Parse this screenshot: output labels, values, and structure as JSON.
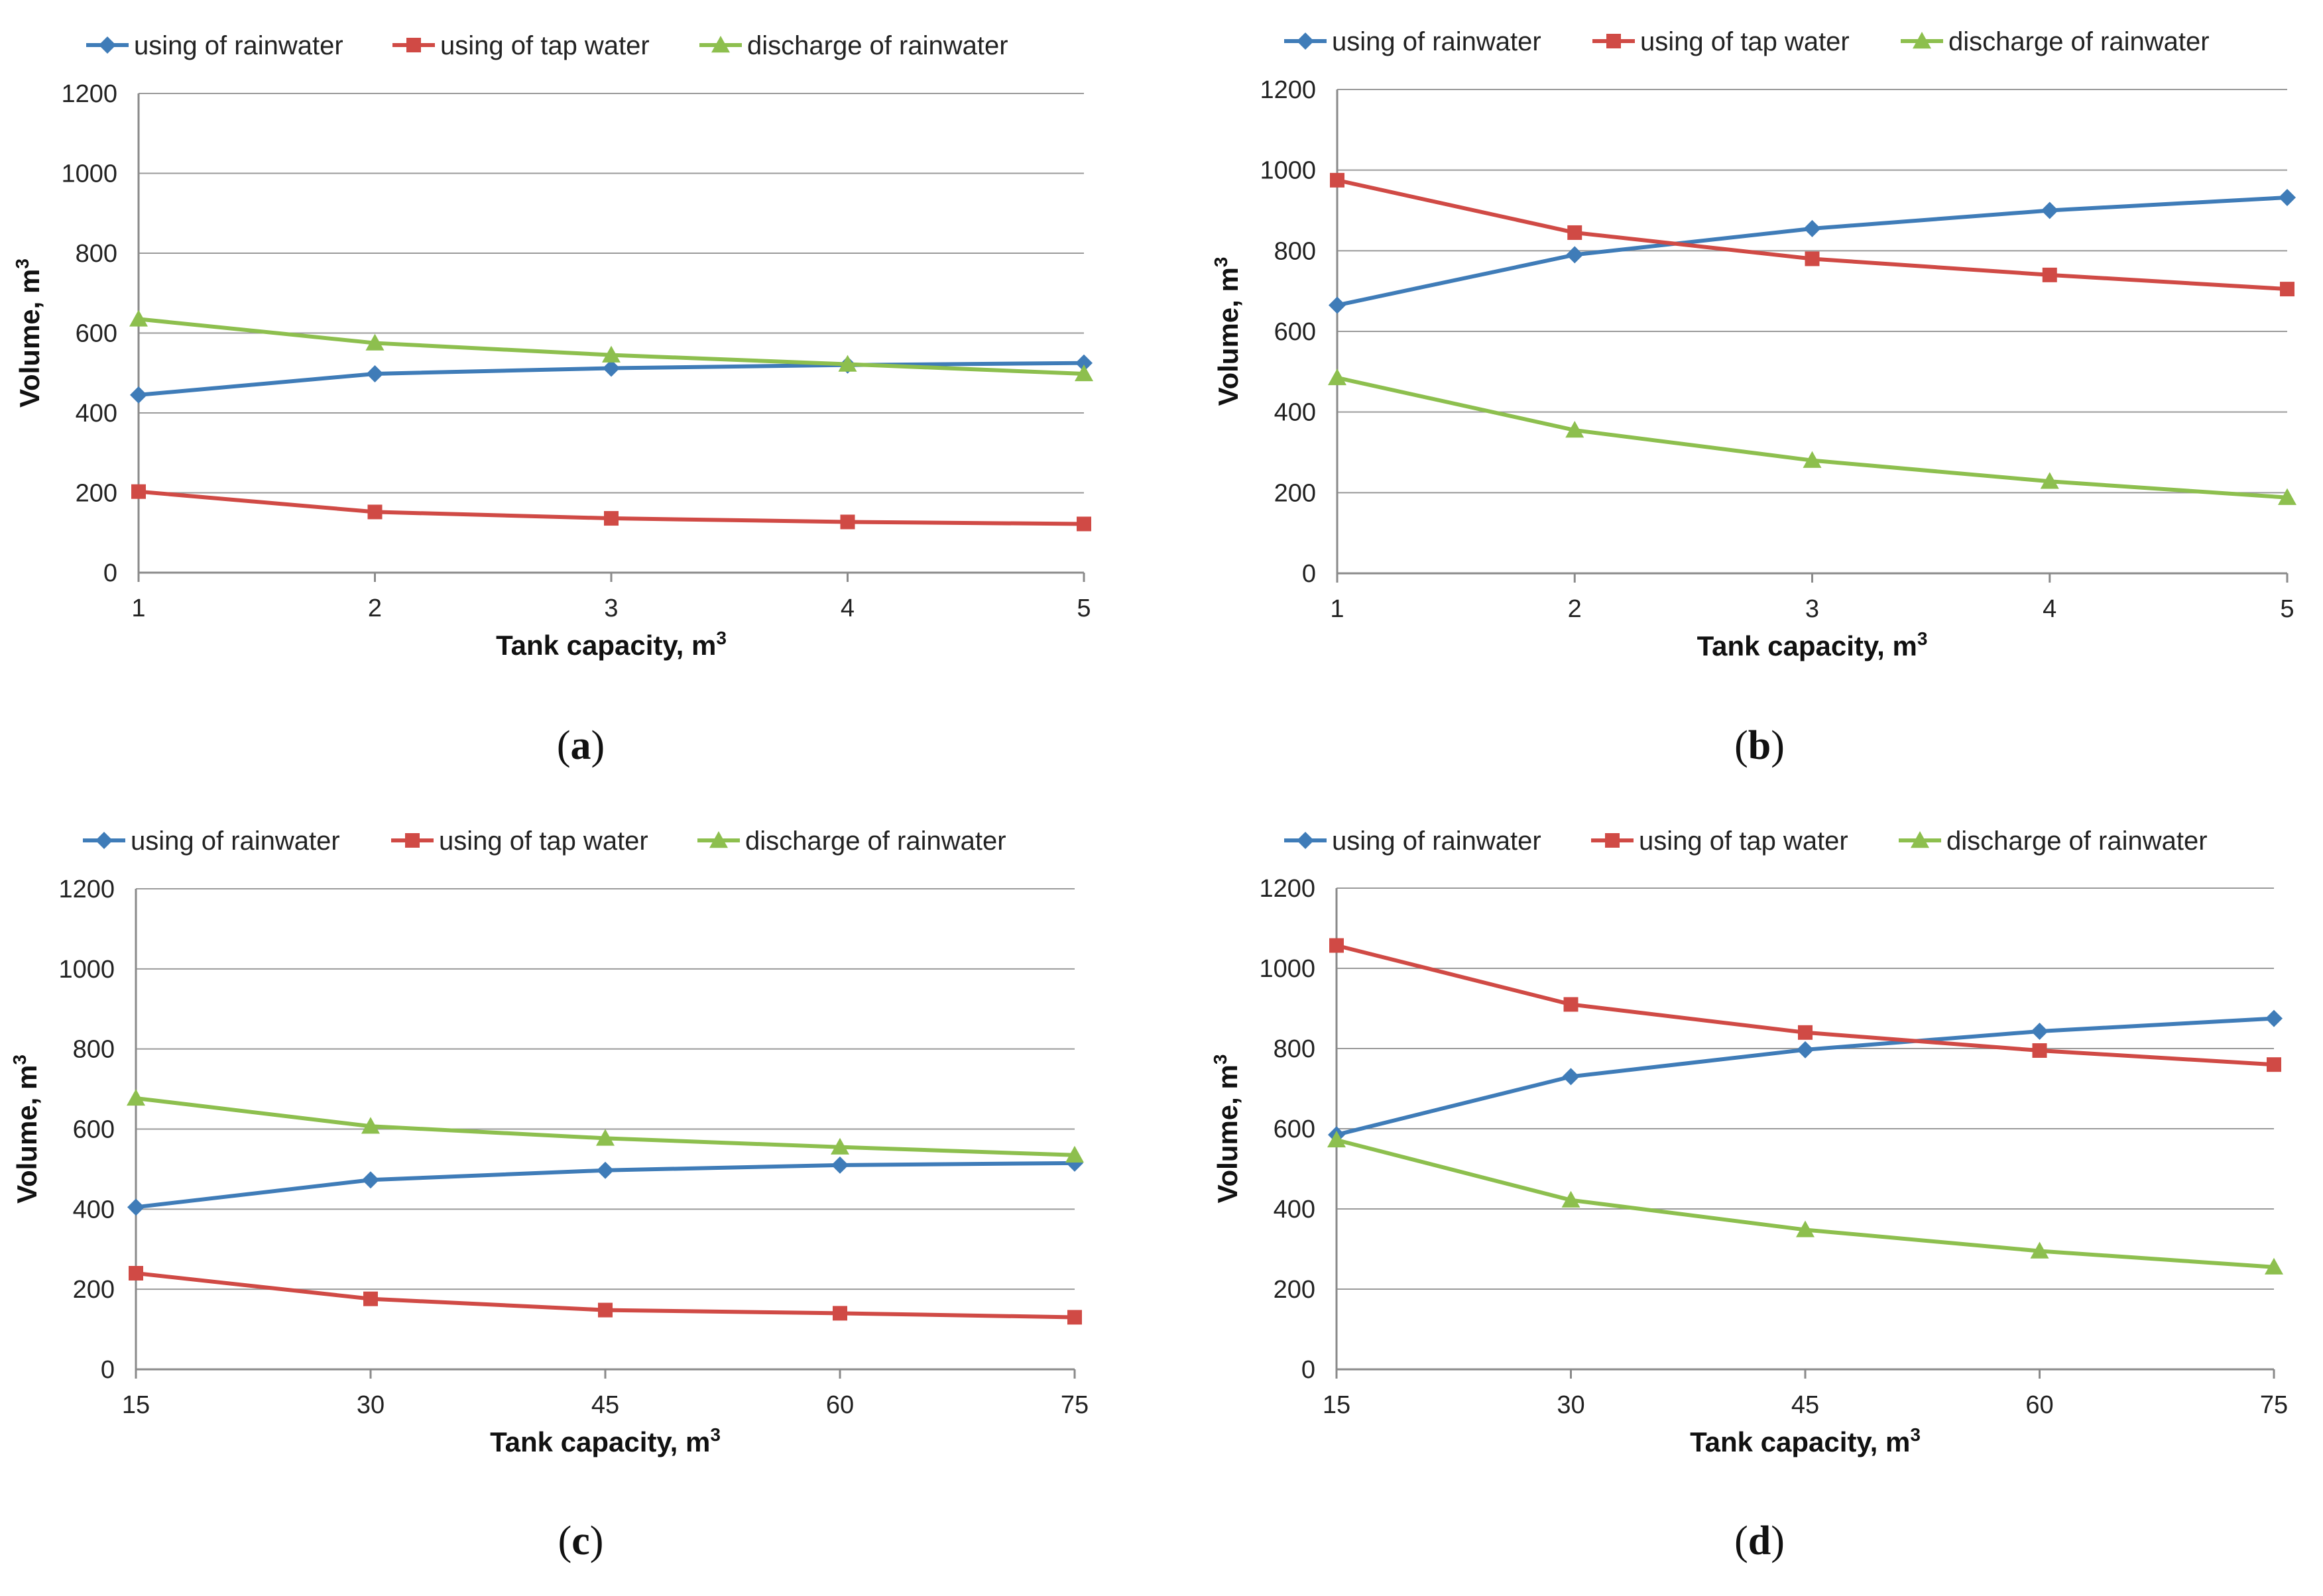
{
  "figure": {
    "panels": [
      {
        "caption": "a",
        "xlabel": "Tank capacity, m",
        "ylabel": "Volume, m"
      },
      {
        "caption": "b",
        "xlabel": "Tank capacity, m",
        "ylabel": "Volume, m"
      },
      {
        "caption": "c",
        "xlabel": "Tank capacity, m",
        "ylabel": "Volume, m"
      },
      {
        "caption": "d",
        "xlabel": "Tank capacity, m",
        "ylabel": "Volume, m"
      }
    ]
  },
  "chart_data": [
    {
      "type": "line",
      "panel": "a",
      "title": "",
      "xlabel": "Tank capacity, m3",
      "ylabel": "Volume, m3",
      "categories": [
        "1",
        "2",
        "3",
        "4",
        "5"
      ],
      "ylim": [
        0,
        1200
      ],
      "yticks": [
        0,
        200,
        400,
        600,
        800,
        1000,
        1200
      ],
      "grid": true,
      "legend": "top",
      "series": [
        {
          "name": "using of rainwater",
          "color": "#3F7CB8",
          "marker": "diamond",
          "values": [
            445,
            498,
            512,
            520,
            525
          ]
        },
        {
          "name": "using of tap water",
          "color": "#D04A45",
          "marker": "square",
          "values": [
            203,
            152,
            136,
            127,
            122
          ]
        },
        {
          "name": "discharge of rainwater",
          "color": "#8DBF4E",
          "marker": "triangle",
          "values": [
            635,
            575,
            545,
            522,
            498
          ]
        }
      ]
    },
    {
      "type": "line",
      "panel": "b",
      "title": "",
      "xlabel": "Tank capacity, m3",
      "ylabel": "Volume, m3",
      "categories": [
        "1",
        "2",
        "3",
        "4",
        "5"
      ],
      "ylim": [
        0,
        1200
      ],
      "yticks": [
        0,
        200,
        400,
        600,
        800,
        1000,
        1200
      ],
      "grid": true,
      "legend": "top",
      "series": [
        {
          "name": "using of rainwater",
          "color": "#3F7CB8",
          "marker": "diamond",
          "values": [
            665,
            790,
            855,
            900,
            932
          ]
        },
        {
          "name": "using of tap water",
          "color": "#D04A45",
          "marker": "square",
          "values": [
            975,
            845,
            780,
            740,
            705
          ]
        },
        {
          "name": "discharge of rainwater",
          "color": "#8DBF4E",
          "marker": "triangle",
          "values": [
            485,
            355,
            280,
            228,
            188
          ]
        }
      ]
    },
    {
      "type": "line",
      "panel": "c",
      "title": "",
      "xlabel": "Tank capacity, m3",
      "ylabel": "Volume, m3",
      "categories": [
        "15",
        "30",
        "45",
        "60",
        "75"
      ],
      "ylim": [
        0,
        1200
      ],
      "yticks": [
        0,
        200,
        400,
        600,
        800,
        1000,
        1200
      ],
      "grid": true,
      "legend": "top",
      "series": [
        {
          "name": "using of rainwater",
          "color": "#3F7CB8",
          "marker": "diamond",
          "values": [
            405,
            473,
            497,
            510,
            515
          ]
        },
        {
          "name": "using of tap water",
          "color": "#D04A45",
          "marker": "square",
          "values": [
            240,
            176,
            148,
            140,
            130
          ]
        },
        {
          "name": "discharge of rainwater",
          "color": "#8DBF4E",
          "marker": "triangle",
          "values": [
            677,
            607,
            577,
            555,
            535
          ]
        }
      ]
    },
    {
      "type": "line",
      "panel": "d",
      "title": "",
      "xlabel": "Tank capacity, m3",
      "ylabel": "Volume, m3",
      "categories": [
        "15",
        "30",
        "45",
        "60",
        "75"
      ],
      "ylim": [
        0,
        1200
      ],
      "yticks": [
        0,
        200,
        400,
        600,
        800,
        1000,
        1200
      ],
      "grid": true,
      "legend": "top",
      "series": [
        {
          "name": "using of rainwater",
          "color": "#3F7CB8",
          "marker": "diamond",
          "values": [
            585,
            730,
            797,
            843,
            875
          ]
        },
        {
          "name": "using of tap water",
          "color": "#D04A45",
          "marker": "square",
          "values": [
            1057,
            910,
            840,
            795,
            760
          ]
        },
        {
          "name": "discharge of rainwater",
          "color": "#8DBF4E",
          "marker": "triangle",
          "values": [
            572,
            422,
            348,
            295,
            255
          ]
        }
      ]
    }
  ]
}
